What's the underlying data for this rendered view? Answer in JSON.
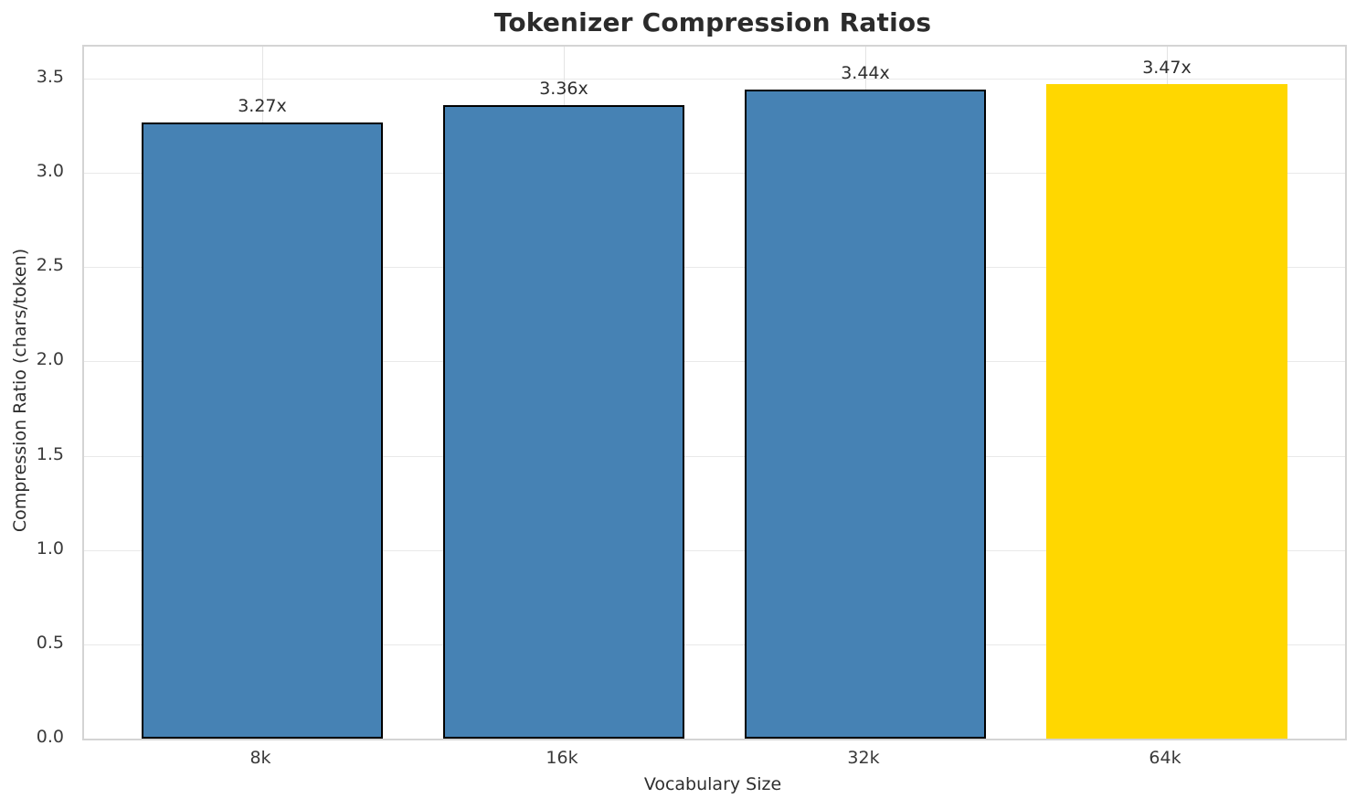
{
  "chart_data": {
    "type": "bar",
    "title": "Tokenizer Compression Ratios",
    "categories": [
      "8k",
      "16k",
      "32k",
      "64k"
    ],
    "values": [
      3.27,
      3.36,
      3.44,
      3.47
    ],
    "bar_labels": [
      "3.27x",
      "3.36x",
      "3.44x",
      "3.47x"
    ],
    "xlabel": "Vocabulary Size",
    "ylabel": "Compression Ratio (chars/token)",
    "ylim": [
      0,
      3.67
    ],
    "yticks": [
      0.0,
      0.5,
      1.0,
      1.5,
      2.0,
      2.5,
      3.0,
      3.5
    ],
    "ytick_labels": [
      "0.0",
      "0.5",
      "1.0",
      "1.5",
      "2.0",
      "2.5",
      "3.0",
      "3.5"
    ],
    "grid": true,
    "legend_position": "none",
    "bar_color": "#4682B4",
    "bar_edge_color": "#000000",
    "highlight_index": 3,
    "highlight_color": "#FFD700"
  }
}
